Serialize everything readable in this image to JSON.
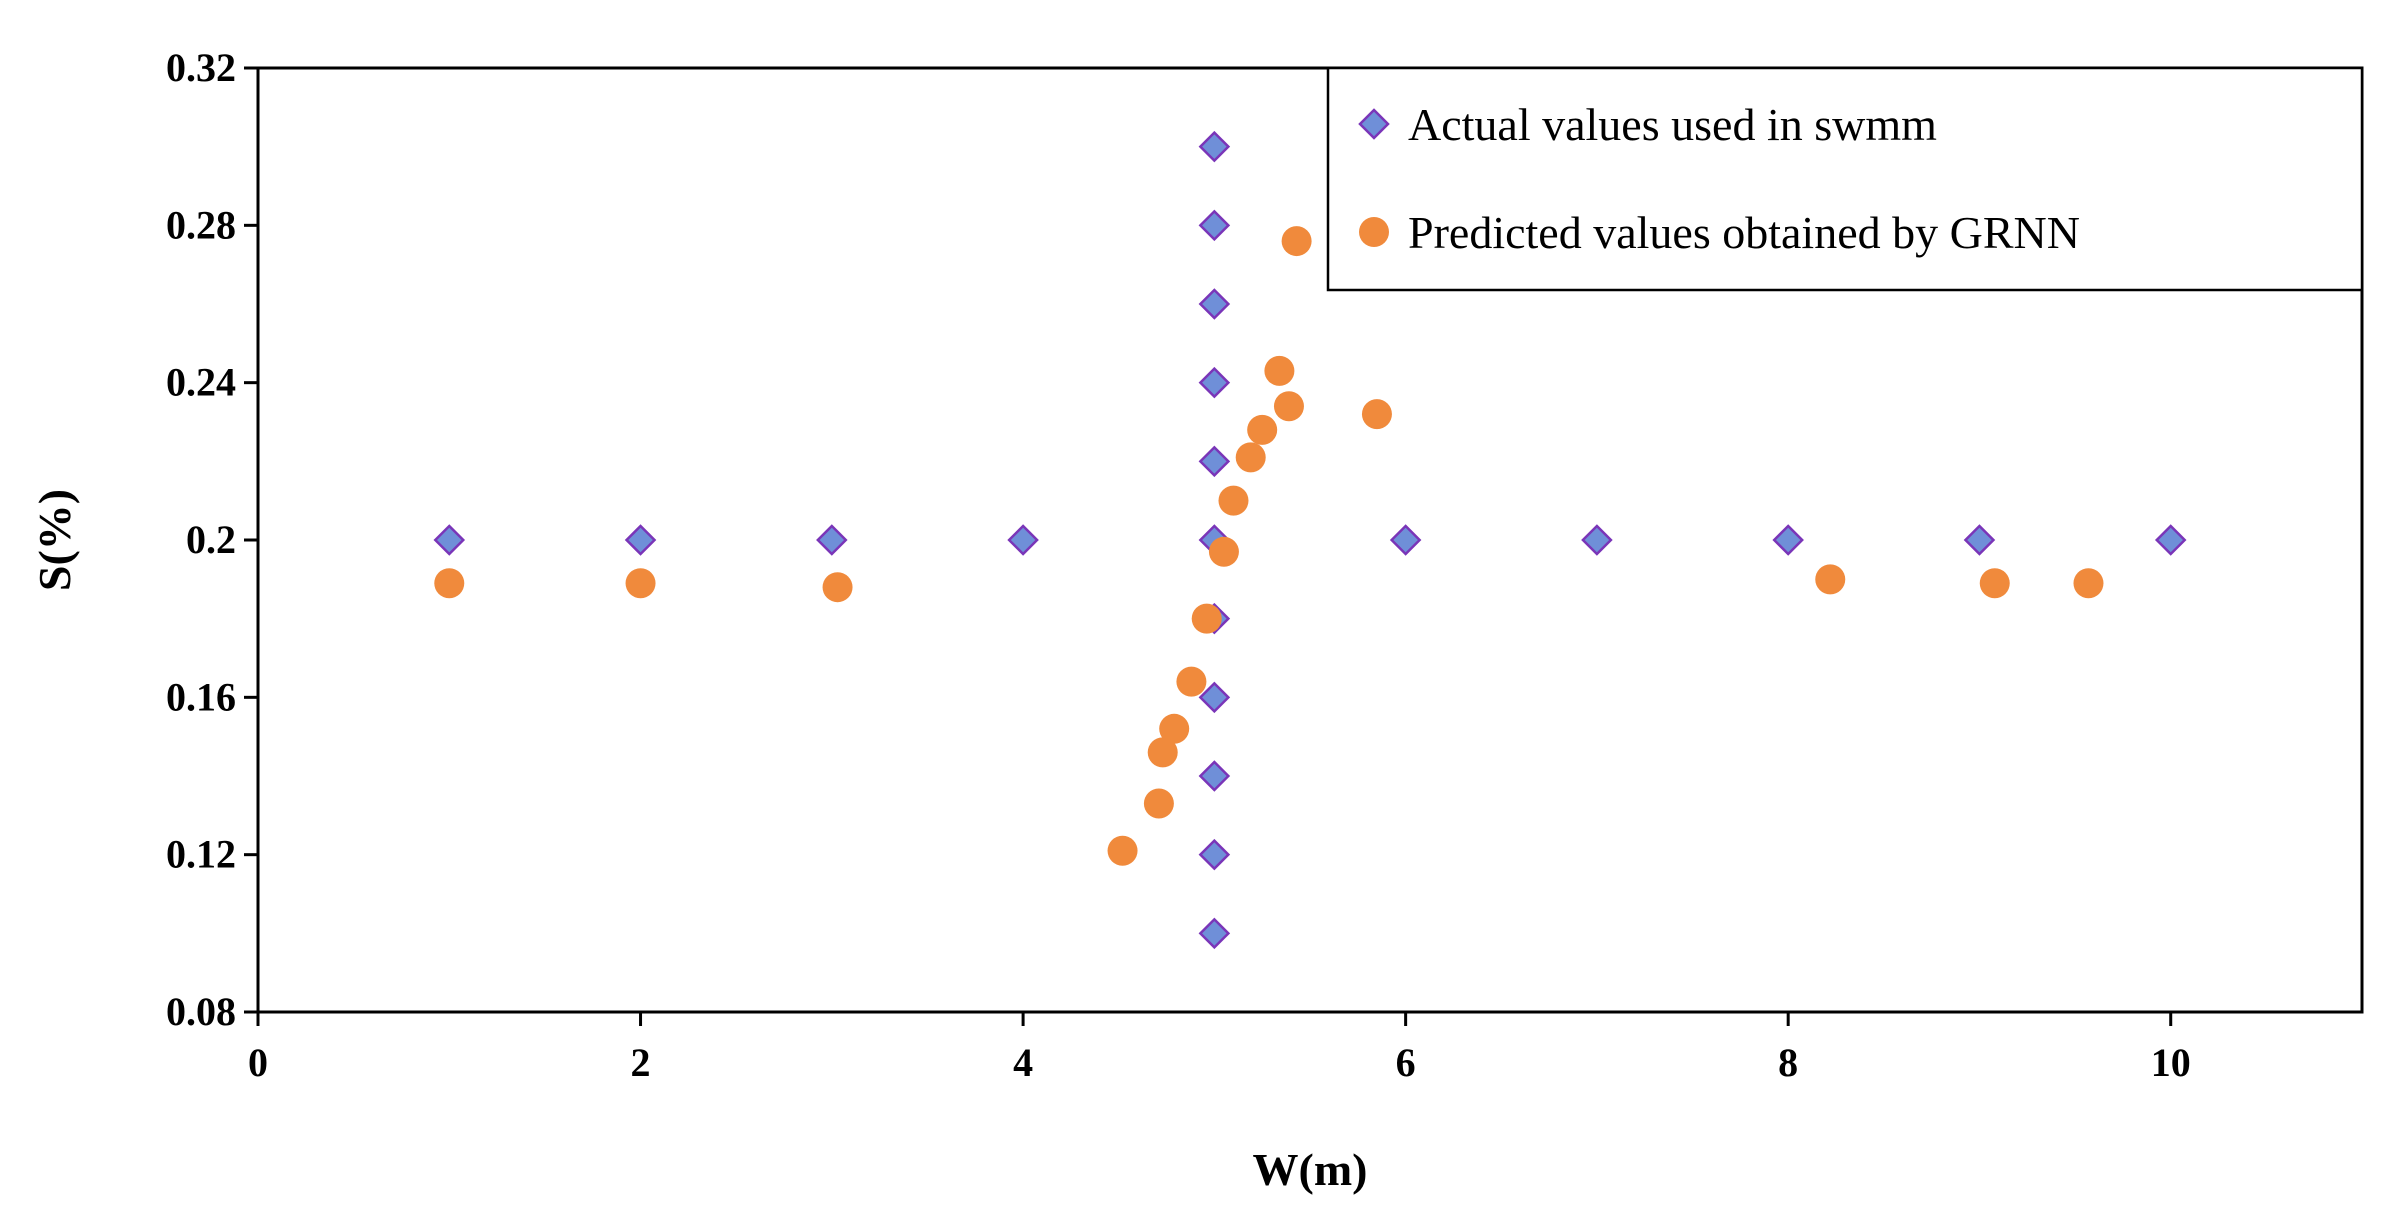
{
  "chart_data": {
    "type": "scatter",
    "xlabel": "W(m)",
    "ylabel": "S(%)",
    "xlim": [
      0,
      11
    ],
    "ylim": [
      0.08,
      0.32
    ],
    "xticks": [
      0,
      2,
      4,
      6,
      8,
      10
    ],
    "xtick_labels": [
      "0",
      "2",
      "4",
      "6",
      "8",
      "10"
    ],
    "yticks": [
      0.08,
      0.12,
      0.16,
      0.2,
      0.24,
      0.28,
      0.32
    ],
    "ytick_labels": [
      "0.08",
      "0.12",
      "0.16",
      "0.2",
      "0.24",
      "0.28",
      "0.32"
    ],
    "grid": false,
    "legend_position": "top-right",
    "series": [
      {
        "name": "Actual values used in swmm",
        "marker": "diamond",
        "color": "#6F8FD8",
        "edge_color": "#7A35B8",
        "points": [
          [
            1,
            0.2
          ],
          [
            2,
            0.2
          ],
          [
            3,
            0.2
          ],
          [
            4,
            0.2
          ],
          [
            5,
            0.2
          ],
          [
            6,
            0.2
          ],
          [
            7,
            0.2
          ],
          [
            8,
            0.2
          ],
          [
            9,
            0.2
          ],
          [
            10,
            0.2
          ],
          [
            5,
            0.3
          ],
          [
            5,
            0.28
          ],
          [
            5,
            0.26
          ],
          [
            5,
            0.24
          ],
          [
            5,
            0.22
          ],
          [
            5,
            0.18
          ],
          [
            5,
            0.16
          ],
          [
            5,
            0.14
          ],
          [
            5,
            0.12
          ],
          [
            5,
            0.1
          ]
        ]
      },
      {
        "name": "Predicted values obtained by GRNN",
        "marker": "circle",
        "color": "#F08A3C",
        "points": [
          [
            1.0,
            0.189
          ],
          [
            2.0,
            0.189
          ],
          [
            3.03,
            0.188
          ],
          [
            8.22,
            0.19
          ],
          [
            9.08,
            0.189
          ],
          [
            9.57,
            0.189
          ],
          [
            5.43,
            0.276
          ],
          [
            5.34,
            0.243
          ],
          [
            5.39,
            0.234
          ],
          [
            5.85,
            0.232
          ],
          [
            5.25,
            0.228
          ],
          [
            5.19,
            0.221
          ],
          [
            5.1,
            0.21
          ],
          [
            5.05,
            0.197
          ],
          [
            4.96,
            0.18
          ],
          [
            4.88,
            0.164
          ],
          [
            4.79,
            0.152
          ],
          [
            4.73,
            0.146
          ],
          [
            4.71,
            0.133
          ],
          [
            4.52,
            0.121
          ]
        ]
      }
    ]
  }
}
